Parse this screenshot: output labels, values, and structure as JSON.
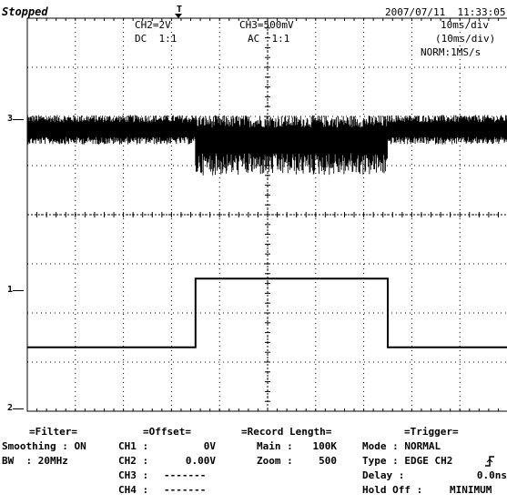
{
  "status": "Stopped",
  "datetime": "2007/07/11  11:33:05",
  "trigger_position_marker": "T",
  "channels": {
    "ch2": {
      "scale": "CH2=2V",
      "coupling": "DC  1:1",
      "marker": "1"
    },
    "ch3": {
      "scale": "CH3=500mV",
      "coupling": "AC  1:1",
      "marker": "3"
    }
  },
  "timebase": {
    "div": "10ms/div",
    "zoom_div": "(10ms/div)",
    "sampling": "NORM:1MS/s"
  },
  "ground_marker": "2",
  "filter": {
    "title": "=Filter=",
    "smoothing": "Smoothing : ON",
    "bw": "BW  : 20MHz"
  },
  "offset": {
    "title": "=Offset=",
    "rows": [
      {
        "label": "CH1 :",
        "value": "0V"
      },
      {
        "label": "CH2 :",
        "value": "0.00V"
      },
      {
        "label": "CH3 :",
        "value": "-------"
      },
      {
        "label": "CH4 :",
        "value": "-------"
      }
    ]
  },
  "record": {
    "title": "=Record Length=",
    "rows": [
      {
        "label": "Main :",
        "value": "100K"
      },
      {
        "label": "Zoom :",
        "value": "500"
      }
    ]
  },
  "trigger": {
    "title": "=Trigger=",
    "mode": "Mode : NORMAL",
    "type": "Type : EDGE CH2",
    "delay_label": "Delay :",
    "delay_value": "0.0ns",
    "holdoff_label": "Hold Off :",
    "holdoff_value": "MINIMUM"
  },
  "chart_data": {
    "type": "line",
    "x_divisions": 10,
    "y_divisions": 8,
    "grid": true,
    "series": [
      {
        "name": "CH3",
        "description": "noisy signal band, denser/larger amplitude between divisions 3.5 and 7.5",
        "level_div": 1.0,
        "segments": [
          {
            "x": [
              0,
              3.5
            ],
            "amplitude_div": 0.3
          },
          {
            "x": [
              3.5,
              7.5
            ],
            "amplitude_div": 0.5
          },
          {
            "x": [
              7.5,
              10
            ],
            "amplitude_div": 0.3
          }
        ]
      },
      {
        "name": "CH2",
        "description": "square pulse",
        "x": [
          0,
          3.5,
          3.5,
          7.5,
          7.5,
          10
        ],
        "y_div": [
          6.7,
          6.7,
          5.3,
          5.3,
          6.7,
          6.7
        ]
      }
    ]
  }
}
